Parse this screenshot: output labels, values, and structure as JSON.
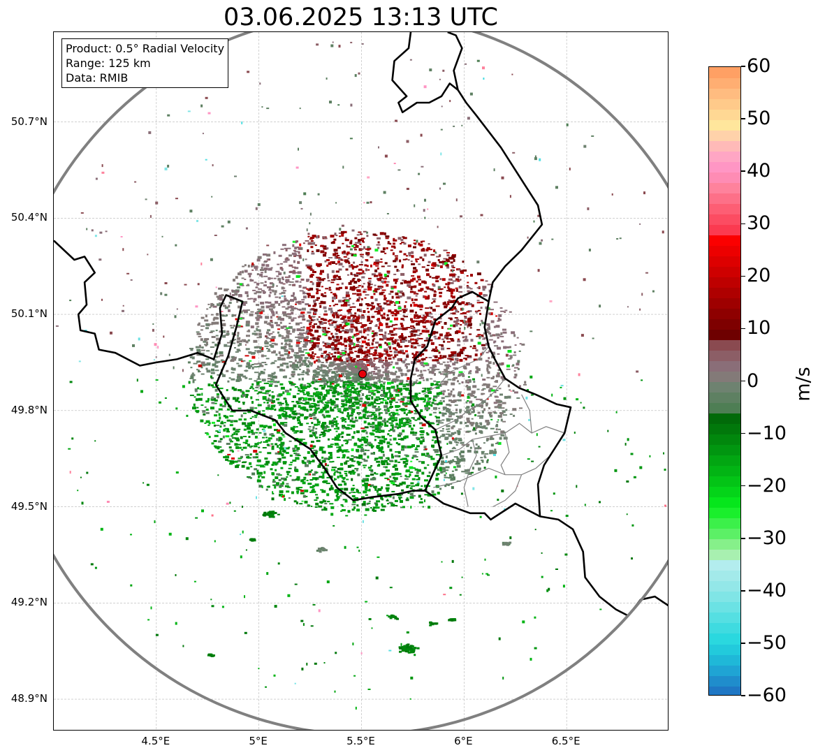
{
  "title": "03.06.2025 13:13 UTC",
  "info": {
    "product": "Product: 0.5° Radial Velocity",
    "range": "Range: 125 km",
    "data_source": "Data: RMIB"
  },
  "map": {
    "lon_range": [
      4.0,
      7.0
    ],
    "lat_range": [
      48.8,
      50.98
    ],
    "lat_ticks": [
      {
        "value": 50.7,
        "label": "50.7°N"
      },
      {
        "value": 50.4,
        "label": "50.4°N"
      },
      {
        "value": 50.1,
        "label": "50.1°N"
      },
      {
        "value": 49.8,
        "label": "49.8°N"
      },
      {
        "value": 49.5,
        "label": "49.5°N"
      },
      {
        "value": 49.2,
        "label": "49.2°N"
      },
      {
        "value": 48.9,
        "label": "48.9°N"
      }
    ],
    "lon_ticks": [
      {
        "value": 4.5,
        "label": "4.5°E"
      },
      {
        "value": 5.0,
        "label": "5°E"
      },
      {
        "value": 5.5,
        "label": "5.5°E"
      },
      {
        "value": 6.0,
        "label": "6°E"
      },
      {
        "value": 6.5,
        "label": "6.5°E"
      }
    ],
    "grid": true,
    "radar_site": {
      "lon": 5.505,
      "lat": 49.914,
      "color": "#e8000b"
    },
    "range_ring_km": 125,
    "ring_color": "#808080",
    "border_color": "#000000",
    "region_border_color": "#808080"
  },
  "colorbar": {
    "unit": "m/s",
    "min": -60,
    "max": 60,
    "ticks": [
      {
        "value": 60,
        "label": "60"
      },
      {
        "value": 50,
        "label": "50"
      },
      {
        "value": 40,
        "label": "40"
      },
      {
        "value": 30,
        "label": "30"
      },
      {
        "value": 20,
        "label": "20"
      },
      {
        "value": 10,
        "label": "10"
      },
      {
        "value": 0,
        "label": "0"
      },
      {
        "value": -10,
        "label": "−10"
      },
      {
        "value": -20,
        "label": "−20"
      },
      {
        "value": -30,
        "label": "−30"
      },
      {
        "value": -40,
        "label": "−40"
      },
      {
        "value": -50,
        "label": "−50"
      },
      {
        "value": -60,
        "label": "−60"
      }
    ],
    "bands": [
      {
        "from": -60,
        "to": -58,
        "color": "#1f77c4"
      },
      {
        "from": -58,
        "to": -56,
        "color": "#1f8dcc"
      },
      {
        "from": -56,
        "to": -54,
        "color": "#1fa4d4"
      },
      {
        "from": -54,
        "to": -52,
        "color": "#1fb8d8"
      },
      {
        "from": -52,
        "to": -50,
        "color": "#22cadc"
      },
      {
        "from": -50,
        "to": -48,
        "color": "#2ad8df"
      },
      {
        "from": -48,
        "to": -46,
        "color": "#3fdbe0"
      },
      {
        "from": -46,
        "to": -44,
        "color": "#55dfe2"
      },
      {
        "from": -44,
        "to": -42,
        "color": "#6be2e4"
      },
      {
        "from": -42,
        "to": -40,
        "color": "#80e5e6"
      },
      {
        "from": -40,
        "to": -38,
        "color": "#93e7e8"
      },
      {
        "from": -38,
        "to": -36,
        "color": "#a3eaea"
      },
      {
        "from": -36,
        "to": -34,
        "color": "#b3edee"
      },
      {
        "from": -34,
        "to": -32,
        "color": "#a8f0b0"
      },
      {
        "from": -32,
        "to": -30,
        "color": "#86f08a"
      },
      {
        "from": -30,
        "to": -28,
        "color": "#5cf066"
      },
      {
        "from": -28,
        "to": -26,
        "color": "#3cf04a"
      },
      {
        "from": -26,
        "to": -24,
        "color": "#1aef2c"
      },
      {
        "from": -24,
        "to": -22,
        "color": "#06e61c"
      },
      {
        "from": -22,
        "to": -20,
        "color": "#04d419"
      },
      {
        "from": -20,
        "to": -18,
        "color": "#03c416"
      },
      {
        "from": -18,
        "to": -16,
        "color": "#02b414"
      },
      {
        "from": -16,
        "to": -14,
        "color": "#02a612"
      },
      {
        "from": -14,
        "to": -12,
        "color": "#019610"
      },
      {
        "from": -12,
        "to": -10,
        "color": "#01870d"
      },
      {
        "from": -10,
        "to": -8,
        "color": "#01780b"
      },
      {
        "from": -8,
        "to": -6,
        "color": "#016a09"
      },
      {
        "from": -6,
        "to": -4,
        "color": "#4e7e54"
      },
      {
        "from": -4,
        "to": -2,
        "color": "#5e8062"
      },
      {
        "from": -2,
        "to": 0,
        "color": "#6e8270"
      },
      {
        "from": 0,
        "to": 2,
        "color": "#837a78"
      },
      {
        "from": 2,
        "to": 4,
        "color": "#8a6e78"
      },
      {
        "from": 4,
        "to": 6,
        "color": "#8c5e66"
      },
      {
        "from": 6,
        "to": 8,
        "color": "#8a4a50"
      },
      {
        "from": 8,
        "to": 10,
        "color": "#6e0000"
      },
      {
        "from": 10,
        "to": 12,
        "color": "#7e0000"
      },
      {
        "from": 12,
        "to": 14,
        "color": "#8e0000"
      },
      {
        "from": 14,
        "to": 16,
        "color": "#9e0000"
      },
      {
        "from": 16,
        "to": 18,
        "color": "#ae0000"
      },
      {
        "from": 18,
        "to": 20,
        "color": "#be0000"
      },
      {
        "from": 20,
        "to": 22,
        "color": "#ce0000"
      },
      {
        "from": 22,
        "to": 24,
        "color": "#dd0000"
      },
      {
        "from": 24,
        "to": 26,
        "color": "#ec0000"
      },
      {
        "from": 26,
        "to": 28,
        "color": "#fb0000"
      },
      {
        "from": 28,
        "to": 30,
        "color": "#fb3a50"
      },
      {
        "from": 30,
        "to": 32,
        "color": "#fc4c62"
      },
      {
        "from": 32,
        "to": 34,
        "color": "#fd5e74"
      },
      {
        "from": 34,
        "to": 36,
        "color": "#fd7088"
      },
      {
        "from": 36,
        "to": 38,
        "color": "#fe829c"
      },
      {
        "from": 38,
        "to": 40,
        "color": "#fe8cb4"
      },
      {
        "from": 40,
        "to": 42,
        "color": "#ff96c4"
      },
      {
        "from": 42,
        "to": 44,
        "color": "#ffa6c4"
      },
      {
        "from": 44,
        "to": 46,
        "color": "#ffbab8"
      },
      {
        "from": 46,
        "to": 48,
        "color": "#ffd2aa"
      },
      {
        "from": 48,
        "to": 50,
        "color": "#ffe69c"
      },
      {
        "from": 50,
        "to": 52,
        "color": "#ffd894"
      },
      {
        "from": 52,
        "to": 54,
        "color": "#ffca8a"
      },
      {
        "from": 54,
        "to": 56,
        "color": "#ffbc80"
      },
      {
        "from": 56,
        "to": 58,
        "color": "#ffae72"
      },
      {
        "from": 58,
        "to": 60,
        "color": "#ffa064"
      }
    ]
  },
  "borders": [
    {
      "kind": "national",
      "points": [
        [
          4.0,
          50.33
        ],
        [
          4.1,
          50.27
        ],
        [
          4.15,
          50.28
        ],
        [
          4.2,
          50.23
        ],
        [
          4.15,
          50.2
        ],
        [
          4.16,
          50.13
        ],
        [
          4.12,
          50.1
        ],
        [
          4.13,
          50.05
        ],
        [
          4.2,
          50.04
        ],
        [
          4.22,
          49.99
        ],
        [
          4.3,
          49.98
        ],
        [
          4.42,
          49.94
        ],
        [
          4.5,
          49.95
        ],
        [
          4.6,
          49.96
        ],
        [
          4.7,
          49.98
        ],
        [
          4.78,
          49.96
        ],
        [
          4.82,
          50.04
        ],
        [
          4.81,
          50.12
        ],
        [
          4.84,
          50.16
        ],
        [
          4.92,
          50.14
        ],
        [
          4.89,
          50.06
        ],
        [
          4.85,
          49.97
        ],
        [
          4.79,
          49.88
        ],
        [
          4.83,
          49.84
        ],
        [
          4.87,
          49.8
        ],
        [
          4.96,
          49.8
        ],
        [
          5.08,
          49.77
        ],
        [
          5.13,
          49.73
        ],
        [
          5.25,
          49.68
        ],
        [
          5.32,
          49.62
        ],
        [
          5.38,
          49.56
        ],
        [
          5.46,
          49.52
        ],
        [
          5.55,
          49.53
        ],
        [
          5.68,
          49.54
        ],
        [
          5.75,
          49.55
        ],
        [
          5.81,
          49.55
        ],
        [
          5.9,
          49.51
        ],
        [
          6.03,
          49.48
        ],
        [
          6.1,
          49.48
        ],
        [
          6.13,
          49.46
        ],
        [
          6.25,
          49.51
        ],
        [
          6.37,
          49.47
        ],
        [
          6.46,
          49.46
        ],
        [
          6.53,
          49.43
        ],
        [
          6.58,
          49.36
        ],
        [
          6.59,
          49.28
        ],
        [
          6.66,
          49.22
        ],
        [
          6.74,
          49.18
        ],
        [
          6.8,
          49.16
        ],
        [
          6.86,
          49.21
        ],
        [
          6.93,
          49.22
        ],
        [
          7.0,
          49.19
        ]
      ]
    },
    {
      "kind": "national",
      "points": [
        [
          6.37,
          49.47
        ],
        [
          6.36,
          49.57
        ],
        [
          6.39,
          49.63
        ],
        [
          6.42,
          49.66
        ],
        [
          6.49,
          49.73
        ],
        [
          6.52,
          49.81
        ],
        [
          6.45,
          49.82
        ],
        [
          6.35,
          49.85
        ],
        [
          6.27,
          49.87
        ],
        [
          6.2,
          49.9
        ],
        [
          6.15,
          49.96
        ],
        [
          6.12,
          50.0
        ],
        [
          6.1,
          50.06
        ],
        [
          6.12,
          50.14
        ],
        [
          6.04,
          50.17
        ],
        [
          5.97,
          50.15
        ],
        [
          5.94,
          50.12
        ],
        [
          5.86,
          50.08
        ],
        [
          5.82,
          50.0
        ],
        [
          5.76,
          49.96
        ],
        [
          5.74,
          49.9
        ],
        [
          5.74,
          49.83
        ],
        [
          5.79,
          49.78
        ],
        [
          5.86,
          49.74
        ],
        [
          5.89,
          49.66
        ],
        [
          5.81,
          49.55
        ]
      ]
    },
    {
      "kind": "national",
      "points": [
        [
          6.12,
          50.14
        ],
        [
          6.14,
          50.2
        ],
        [
          6.2,
          50.25
        ],
        [
          6.28,
          50.3
        ],
        [
          6.33,
          50.34
        ],
        [
          6.38,
          50.38
        ],
        [
          6.36,
          50.44
        ],
        [
          6.3,
          50.5
        ],
        [
          6.22,
          50.58
        ],
        [
          6.18,
          50.62
        ],
        [
          6.06,
          50.72
        ],
        [
          6.01,
          50.76
        ],
        [
          5.97,
          50.8
        ],
        [
          5.95,
          50.86
        ],
        [
          5.99,
          50.93
        ],
        [
          5.96,
          50.97
        ],
        [
          5.92,
          50.98
        ]
      ]
    },
    {
      "kind": "national",
      "points": [
        [
          5.74,
          50.98
        ],
        [
          5.73,
          50.93
        ],
        [
          5.66,
          50.89
        ],
        [
          5.65,
          50.83
        ],
        [
          5.72,
          50.78
        ],
        [
          5.68,
          50.76
        ],
        [
          5.7,
          50.73
        ],
        [
          5.77,
          50.76
        ],
        [
          5.83,
          50.76
        ],
        [
          5.89,
          50.78
        ],
        [
          5.93,
          50.82
        ],
        [
          5.97,
          50.8
        ]
      ]
    }
  ],
  "region_borders": [
    {
      "points": [
        [
          6.12,
          50.0
        ],
        [
          6.07,
          49.96
        ],
        [
          6.0,
          49.94
        ],
        [
          5.93,
          49.92
        ],
        [
          5.88,
          49.88
        ],
        [
          5.8,
          49.85
        ]
      ]
    },
    {
      "points": [
        [
          6.2,
          49.9
        ],
        [
          6.15,
          49.86
        ],
        [
          6.1,
          49.83
        ],
        [
          6.02,
          49.8
        ],
        [
          5.96,
          49.77
        ],
        [
          5.86,
          49.74
        ]
      ]
    },
    {
      "points": [
        [
          6.49,
          49.73
        ],
        [
          6.4,
          49.75
        ],
        [
          6.33,
          49.73
        ],
        [
          6.27,
          49.76
        ],
        [
          6.2,
          49.73
        ],
        [
          6.12,
          49.72
        ],
        [
          6.04,
          49.71
        ],
        [
          5.98,
          49.68
        ],
        [
          5.89,
          49.66
        ]
      ]
    },
    {
      "points": [
        [
          6.42,
          49.66
        ],
        [
          6.35,
          49.62
        ],
        [
          6.28,
          49.6
        ],
        [
          6.2,
          49.6
        ],
        [
          6.12,
          49.62
        ],
        [
          6.05,
          49.6
        ],
        [
          5.98,
          49.58
        ],
        [
          5.92,
          49.57
        ],
        [
          5.85,
          49.56
        ]
      ]
    },
    {
      "points": [
        [
          6.28,
          49.6
        ],
        [
          6.25,
          49.55
        ],
        [
          6.2,
          49.52
        ],
        [
          6.14,
          49.5
        ]
      ]
    },
    {
      "points": [
        [
          6.04,
          49.71
        ],
        [
          6.06,
          49.66
        ],
        [
          6.03,
          49.62
        ],
        [
          6.0,
          49.56
        ],
        [
          6.02,
          49.5
        ]
      ]
    },
    {
      "points": [
        [
          6.33,
          49.73
        ],
        [
          6.32,
          49.8
        ],
        [
          6.28,
          49.85
        ]
      ]
    },
    {
      "points": [
        [
          6.2,
          49.73
        ],
        [
          6.22,
          49.67
        ],
        [
          6.18,
          49.63
        ],
        [
          6.2,
          49.6
        ]
      ]
    }
  ]
}
